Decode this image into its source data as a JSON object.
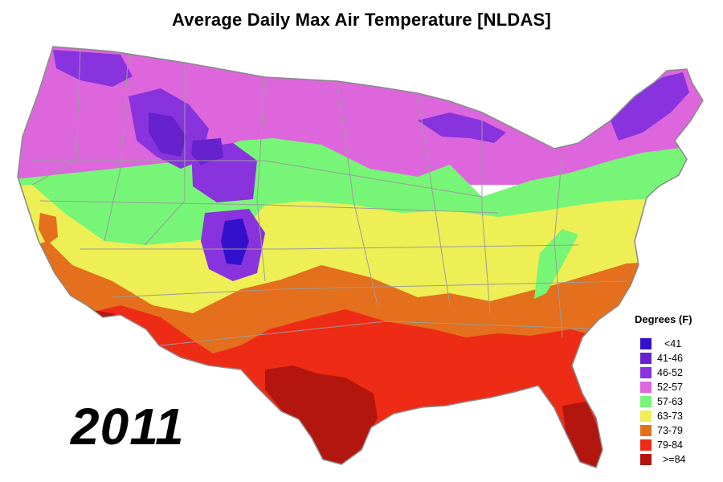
{
  "title": "Average Daily Max Air Temperature [NLDAS]",
  "year": "2011",
  "legend": {
    "title": "Degrees (F)",
    "items": [
      {
        "label": "<41",
        "color": "#3311cc"
      },
      {
        "label": "41-46",
        "color": "#6622cc"
      },
      {
        "label": "46-52",
        "color": "#8833dd"
      },
      {
        "label": "52-57",
        "color": "#dd66dd"
      },
      {
        "label": "57-63",
        "color": "#77f577"
      },
      {
        "label": "63-73",
        "color": "#eeee55"
      },
      {
        "label": "73-79",
        "color": "#e46f1c"
      },
      {
        "label": "79-84",
        "color": "#ee2b15"
      },
      {
        "label": ">=84",
        "color": "#b3160f"
      }
    ]
  }
}
